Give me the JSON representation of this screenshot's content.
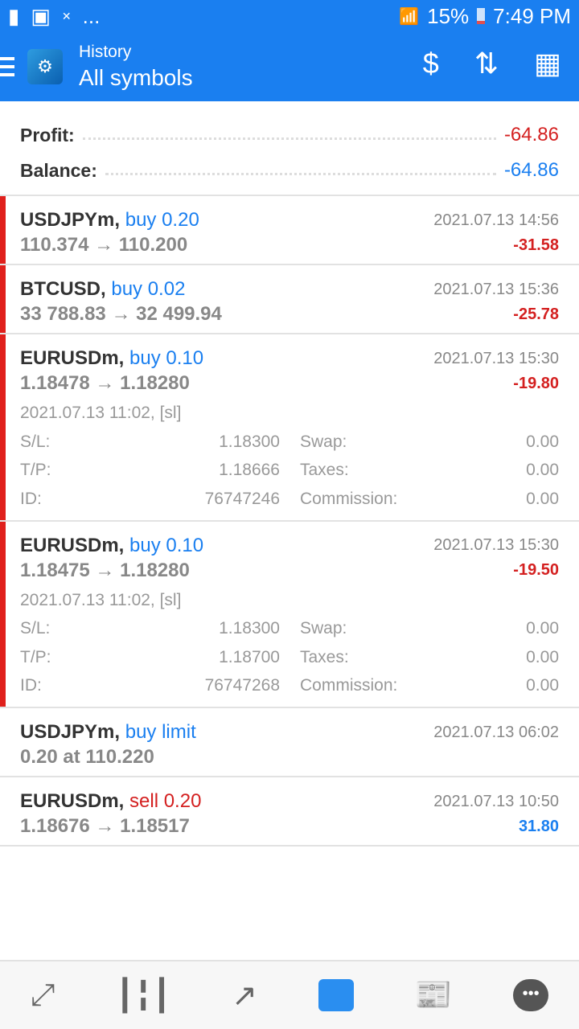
{
  "status_bar": {
    "battery": "15%",
    "time": "7:49 PM",
    "more": "..."
  },
  "header": {
    "title": "History",
    "subtitle": "All symbols",
    "icons": [
      "menu-icon",
      "currency-exchange-icon",
      "sort-icon",
      "calendar-icon"
    ]
  },
  "summary": {
    "profit_label": "Profit:",
    "profit_value": "-64.86",
    "balance_label": "Balance:",
    "balance_value": "-64.86"
  },
  "colors": {
    "accent": "#1a7ff0",
    "negative": "#d42020",
    "positive": "#1a7ff0"
  },
  "trades": [
    {
      "symbol": "USDJPYm,",
      "side": "buy 0.20",
      "side_type": "buy",
      "time": "2021.07.13 14:56",
      "price": "110.374 → 110.200",
      "pl": "-31.58",
      "pl_sign": "neg",
      "bar": true
    },
    {
      "symbol": "BTCUSD,",
      "side": "buy 0.02",
      "side_type": "buy",
      "time": "2021.07.13 15:36",
      "price": "33 788.83 → 32 499.94",
      "pl": "-25.78",
      "pl_sign": "neg",
      "bar": true
    },
    {
      "symbol": "EURUSDm,",
      "side": "buy 0.10",
      "side_type": "buy",
      "time": "2021.07.13 15:30",
      "price": "1.18478 → 1.18280",
      "pl": "-19.80",
      "pl_sign": "neg",
      "bar": true,
      "details": {
        "open_time": "2021.07.13 11:02, [sl]",
        "sl_label": "S/L:",
        "sl": "1.18300",
        "tp_label": "T/P:",
        "tp": "1.18666",
        "id_label": "ID:",
        "id": "76747246",
        "swap_label": "Swap:",
        "swap": "0.00",
        "taxes_label": "Taxes:",
        "taxes": "0.00",
        "commission_label": "Commission:",
        "commission": "0.00"
      }
    },
    {
      "symbol": "EURUSDm,",
      "side": "buy 0.10",
      "side_type": "buy",
      "time": "2021.07.13 15:30",
      "price": "1.18475 → 1.18280",
      "pl": "-19.50",
      "pl_sign": "neg",
      "bar": true,
      "details": {
        "open_time": "2021.07.13 11:02, [sl]",
        "sl_label": "S/L:",
        "sl": "1.18300",
        "tp_label": "T/P:",
        "tp": "1.18700",
        "id_label": "ID:",
        "id": "76747268",
        "swap_label": "Swap:",
        "swap": "0.00",
        "taxes_label": "Taxes:",
        "taxes": "0.00",
        "commission_label": "Commission:",
        "commission": "0.00"
      }
    },
    {
      "symbol": "USDJPYm,",
      "side": "buy limit",
      "side_type": "buy",
      "time": "2021.07.13 06:02",
      "price": "0.20 at 110.220",
      "pl": "",
      "pl_sign": "none",
      "bar": false
    },
    {
      "symbol": "EURUSDm,",
      "side": "sell 0.20",
      "side_type": "sell",
      "time": "2021.07.13 10:50",
      "price": "1.18676 → 1.18517",
      "pl": "31.80",
      "pl_sign": "pos",
      "bar": false
    }
  ],
  "bottom_nav": [
    {
      "icon": "quotes-icon"
    },
    {
      "icon": "chart-icon"
    },
    {
      "icon": "trade-icon"
    },
    {
      "icon": "history-icon",
      "active": true
    },
    {
      "icon": "news-icon"
    },
    {
      "icon": "messages-icon"
    }
  ]
}
